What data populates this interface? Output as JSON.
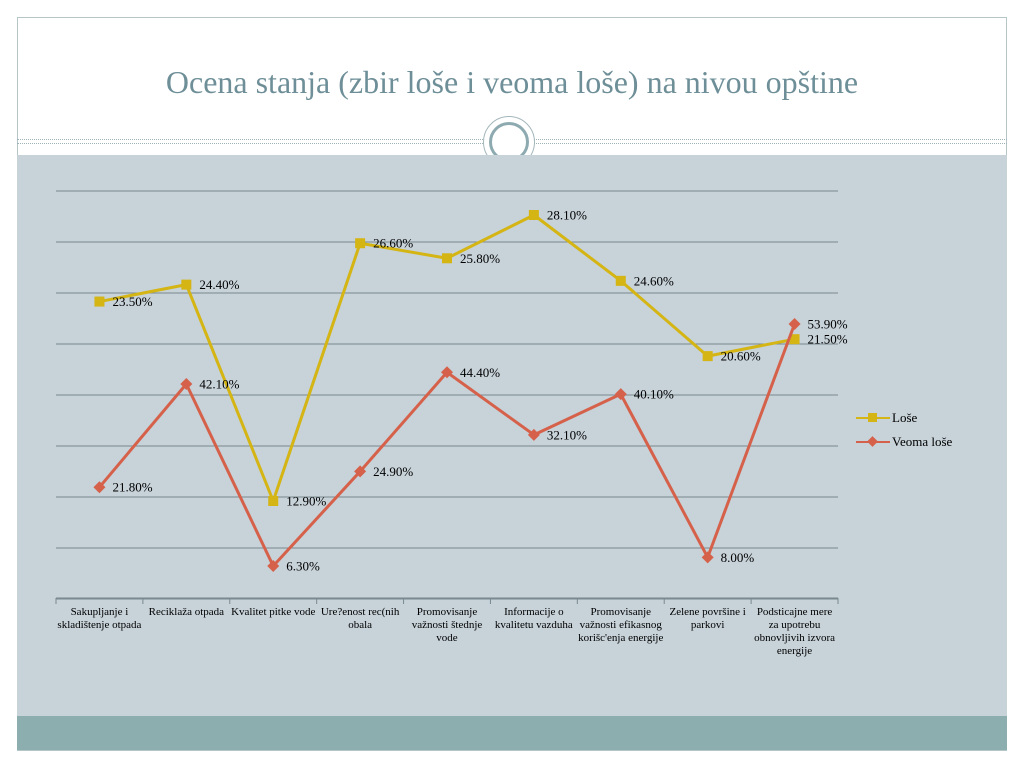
{
  "slide": {
    "title": "Ocena stanja (zbir loše i veoma loše) na nivou opštine"
  },
  "colors": {
    "panel": "#c7d2d9",
    "footer": "#8daeae",
    "title": "#6e8f98",
    "lose": "#d4b514",
    "veoma_lose": "#d6614a",
    "gridline": "#7a8a90"
  },
  "chart_data": {
    "type": "line",
    "title": "",
    "xlabel": "",
    "ylabel": "",
    "grid": true,
    "legend_position": "right",
    "categories": [
      "Sakupljanje i skladištenje otpada",
      "Reciklaža otpada",
      "Kvalitet pitke vode",
      "Ure?enost rec(nih obala",
      "Promovisanje važnosti štednje vode",
      "Informacije o kvalitetu vazduha",
      "Promovisanje važnosti efikasnog korišc'enja energije",
      "Zelene površine i parkovi",
      "Podsticajne mere za upotrebu obnovljivih izvora energije"
    ],
    "series": [
      {
        "name": "Loše",
        "marker": "square",
        "values": [
          23.5,
          24.4,
          12.9,
          26.6,
          25.8,
          28.1,
          24.6,
          20.6,
          21.5
        ],
        "labels": [
          "23.50%",
          "24.40%",
          "12.90%",
          "26.60%",
          "25.80%",
          "28.10%",
          "24.60%",
          "20.60%",
          "21.50%"
        ]
      },
      {
        "name": "Veoma loše",
        "marker": "diamond",
        "values": [
          21.8,
          42.1,
          6.3,
          24.9,
          44.4,
          32.1,
          40.1,
          8.0,
          53.9
        ],
        "labels": [
          "21.80%",
          "42.10%",
          "6.30%",
          "24.90%",
          "44.40%",
          "32.10%",
          "40.10%",
          "8.00%",
          "53.90%"
        ]
      }
    ]
  }
}
